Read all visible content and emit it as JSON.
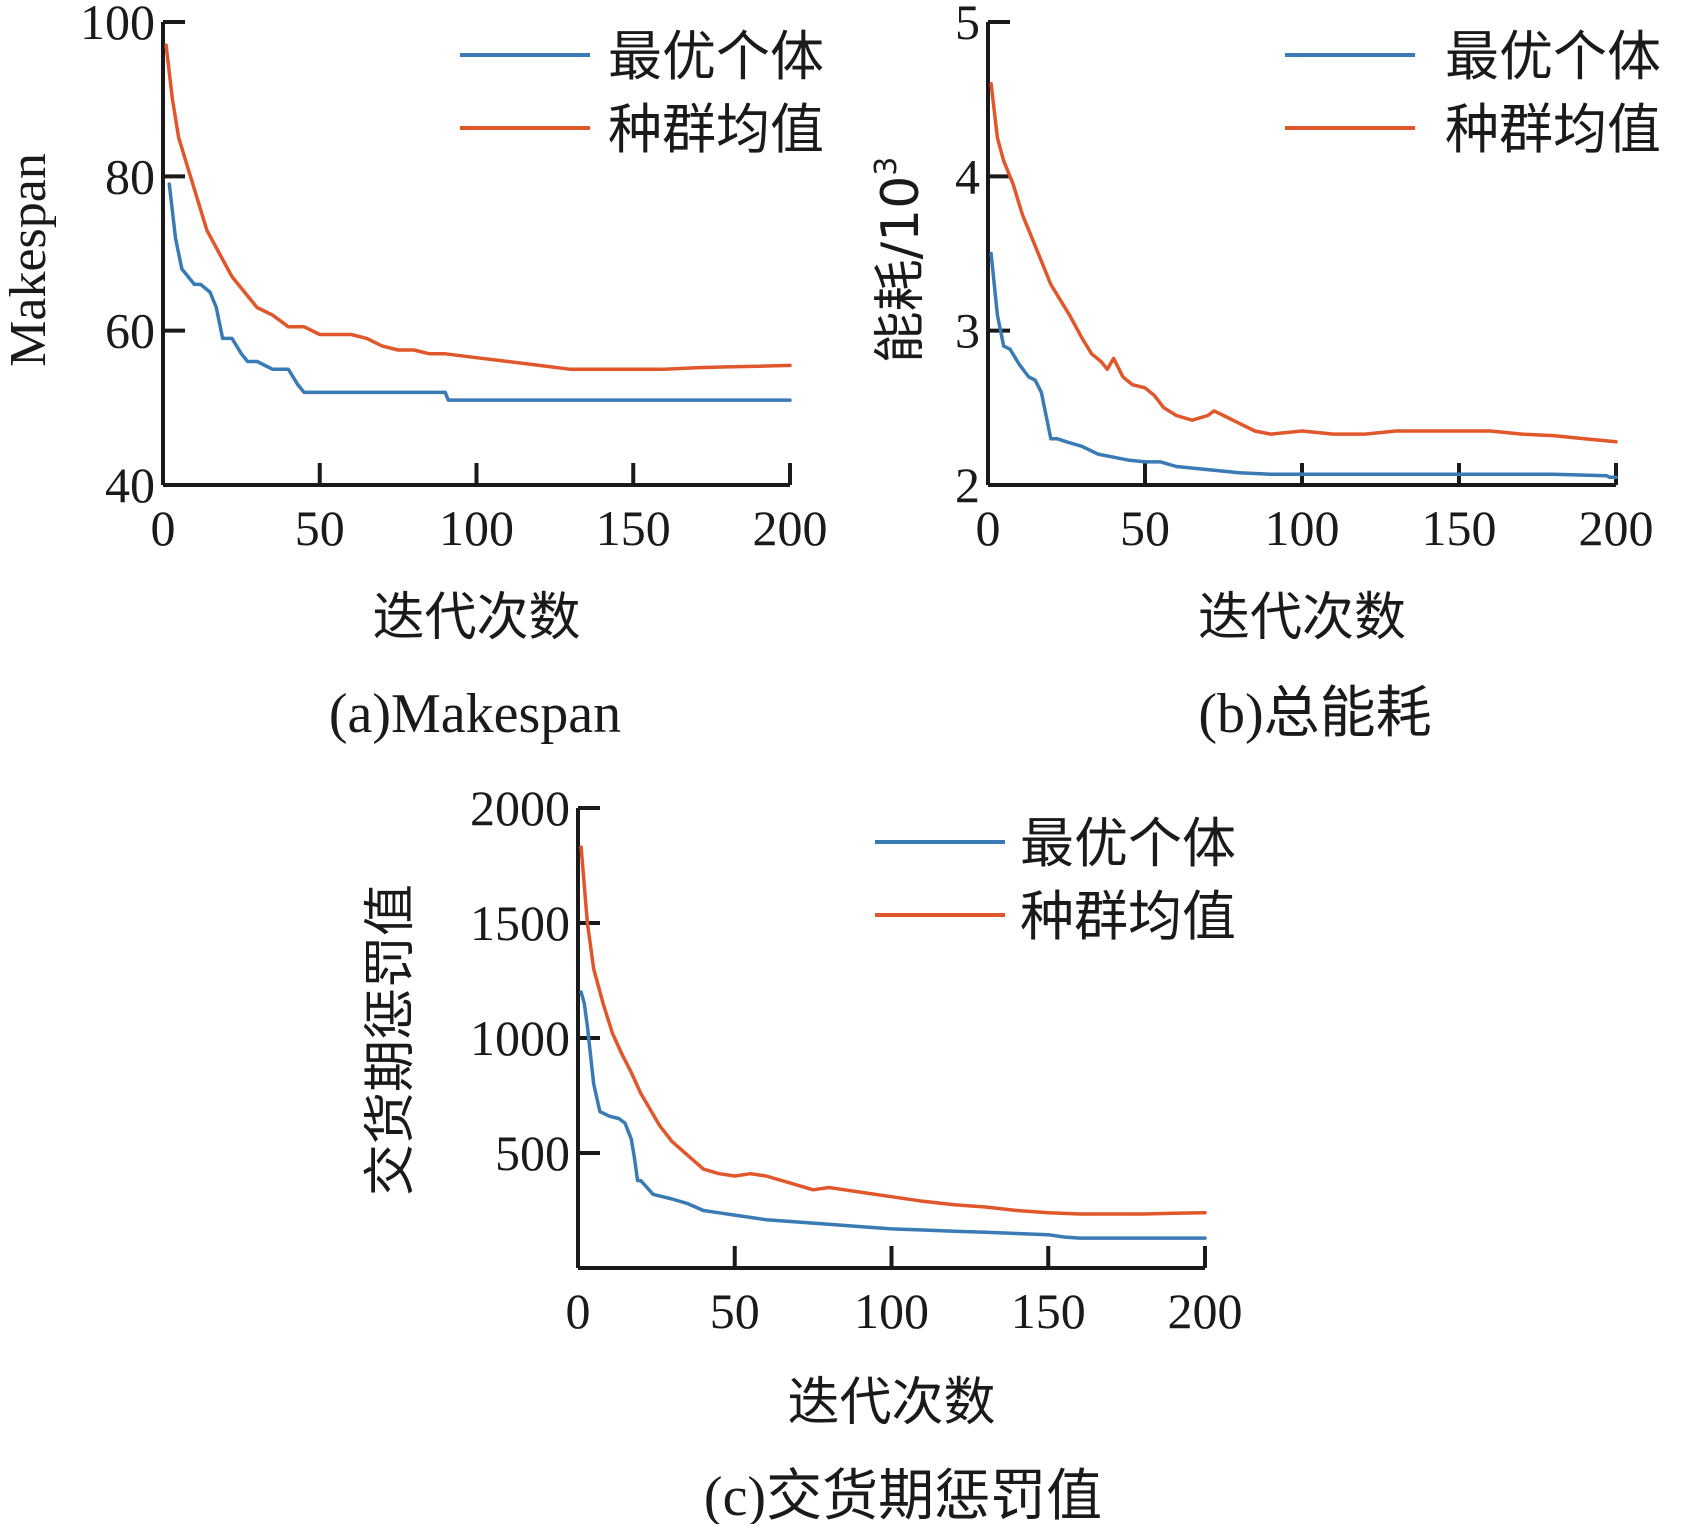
{
  "colors": {
    "best": "#3a7ab5",
    "mean": "#e0572b"
  },
  "chart_data": [
    {
      "type": "line",
      "caption": "(a)Makespan",
      "xlabel": "迭代次数",
      "ylabel": "Makespan",
      "ylabel_sup": "",
      "xlim": [
        0,
        200
      ],
      "ylim": [
        40,
        100
      ],
      "xticks": [
        0,
        50,
        100,
        150,
        200
      ],
      "yticks": [
        40,
        60,
        80,
        100
      ],
      "legend": "top-right",
      "grid": false,
      "series": [
        {
          "name": "最优个体",
          "color_key": "best",
          "x": [
            2,
            4,
            6,
            8,
            10,
            12,
            15,
            17,
            19,
            22,
            25,
            27,
            30,
            35,
            40,
            43,
            45,
            50,
            60,
            70,
            80,
            90,
            91,
            100,
            150,
            200
          ],
          "y": [
            79,
            72,
            68,
            67,
            66,
            66,
            65,
            63,
            59,
            59,
            57,
            56,
            56,
            55,
            55,
            53,
            52,
            52,
            52,
            52,
            52,
            52,
            51,
            51,
            51,
            51
          ]
        },
        {
          "name": "种群均值",
          "color_key": "mean",
          "x": [
            1,
            3,
            5,
            8,
            11,
            14,
            18,
            22,
            26,
            30,
            35,
            40,
            45,
            50,
            55,
            60,
            65,
            70,
            75,
            80,
            85,
            90,
            100,
            110,
            120,
            130,
            140,
            150,
            160,
            170,
            180,
            190,
            200
          ],
          "y": [
            97,
            90,
            85,
            81,
            77,
            73,
            70,
            67,
            65,
            63,
            62,
            60.5,
            60.5,
            59.5,
            59.5,
            59.5,
            59,
            58,
            57.5,
            57.5,
            57,
            57,
            56.5,
            56,
            55.5,
            55,
            55,
            55,
            55,
            55.2,
            55.3,
            55.4,
            55.5
          ]
        }
      ]
    },
    {
      "type": "line",
      "caption": "(b)总能耗",
      "xlabel": "迭代次数",
      "ylabel": "能耗/10",
      "ylabel_sup": "3",
      "xlim": [
        0,
        200
      ],
      "ylim": [
        2,
        5
      ],
      "xticks": [
        0,
        50,
        100,
        150,
        200
      ],
      "yticks": [
        2,
        3,
        4,
        5
      ],
      "legend": "top-right",
      "grid": false,
      "series": [
        {
          "name": "最优个体",
          "color_key": "best",
          "x": [
            1,
            3,
            5,
            7,
            10,
            13,
            15,
            17,
            18,
            19,
            20,
            22,
            25,
            30,
            35,
            40,
            45,
            50,
            55,
            60,
            70,
            80,
            90,
            100,
            120,
            150,
            180,
            197,
            198,
            200
          ],
          "y": [
            3.5,
            3.1,
            2.9,
            2.88,
            2.78,
            2.7,
            2.68,
            2.6,
            2.5,
            2.4,
            2.3,
            2.3,
            2.28,
            2.25,
            2.2,
            2.18,
            2.16,
            2.15,
            2.15,
            2.12,
            2.1,
            2.08,
            2.07,
            2.07,
            2.07,
            2.07,
            2.07,
            2.06,
            2.05,
            2.05
          ]
        },
        {
          "name": "种群均值",
          "color_key": "mean",
          "x": [
            1,
            3,
            5,
            8,
            11,
            14,
            17,
            20,
            23,
            26,
            30,
            33,
            36,
            38,
            40,
            43,
            46,
            50,
            53,
            56,
            60,
            65,
            70,
            72,
            75,
            80,
            85,
            90,
            100,
            110,
            120,
            130,
            140,
            150,
            160,
            170,
            180,
            190,
            200
          ],
          "y": [
            4.6,
            4.25,
            4.1,
            3.95,
            3.75,
            3.6,
            3.45,
            3.3,
            3.2,
            3.1,
            2.95,
            2.85,
            2.8,
            2.75,
            2.82,
            2.7,
            2.65,
            2.63,
            2.58,
            2.5,
            2.45,
            2.42,
            2.45,
            2.48,
            2.45,
            2.4,
            2.35,
            2.33,
            2.35,
            2.33,
            2.33,
            2.35,
            2.35,
            2.35,
            2.35,
            2.33,
            2.32,
            2.3,
            2.28
          ]
        }
      ]
    },
    {
      "type": "line",
      "caption": "(c)交货期惩罚值",
      "xlabel": "迭代次数",
      "ylabel": "交货期惩罚值",
      "ylabel_sup": "",
      "xlim": [
        0,
        200
      ],
      "ylim": [
        0,
        2000
      ],
      "xticks": [
        0,
        50,
        100,
        150,
        200
      ],
      "yticks": [
        500,
        1000,
        1500,
        2000
      ],
      "xtick_labels": [
        "0",
        "50",
        "100",
        "150",
        "200"
      ],
      "legend": "top-right",
      "grid": false,
      "series": [
        {
          "name": "最优个体",
          "color_key": "best",
          "x": [
            1,
            2,
            3,
            5,
            7,
            10,
            13,
            15,
            17,
            18,
            19,
            20,
            22,
            24,
            27,
            30,
            35,
            40,
            45,
            50,
            60,
            70,
            80,
            90,
            100,
            110,
            120,
            130,
            140,
            150,
            155,
            160,
            200
          ],
          "y": [
            1200,
            1150,
            1050,
            800,
            680,
            660,
            650,
            630,
            560,
            480,
            380,
            380,
            350,
            320,
            310,
            300,
            280,
            250,
            240,
            230,
            210,
            200,
            190,
            180,
            170,
            165,
            160,
            155,
            150,
            145,
            135,
            130,
            130
          ]
        },
        {
          "name": "种群均值",
          "color_key": "mean",
          "x": [
            1,
            3,
            5,
            8,
            11,
            14,
            17,
            20,
            23,
            26,
            30,
            35,
            40,
            45,
            50,
            55,
            60,
            65,
            70,
            75,
            80,
            85,
            90,
            100,
            110,
            120,
            130,
            140,
            150,
            160,
            170,
            180,
            190,
            200
          ],
          "y": [
            1830,
            1500,
            1300,
            1150,
            1020,
            930,
            850,
            760,
            690,
            620,
            550,
            490,
            430,
            410,
            400,
            410,
            400,
            380,
            360,
            340,
            350,
            340,
            330,
            310,
            290,
            275,
            265,
            250,
            240,
            235,
            235,
            235,
            238,
            240
          ]
        }
      ]
    }
  ]
}
